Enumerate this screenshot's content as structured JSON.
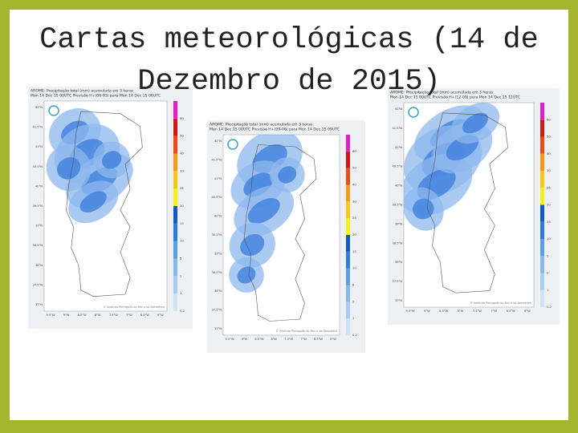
{
  "header": {
    "title_lines": [
      "Cartas meteorológicas (14 de",
      "Dezembro de 2015)"
    ]
  },
  "maps": [
    {
      "heading": [
        "AROME: Precipitação total (mm) acumulada em 3 horas",
        "Mon 14 Dec 15 00UTC Previsão H+(06-03) para Mon 14 Dec 15 06UTC"
      ],
      "lat_labels": [
        "42°N",
        "41.5°N",
        "41°N",
        "40.5°N",
        "40°N",
        "39.5°N",
        "39°N",
        "38.5°N",
        "38°N",
        "37.5°N",
        "37°N"
      ],
      "lon_labels": [
        "9.5°W",
        "9°W",
        "8.5°W",
        "8°W",
        "7.5°W",
        "7°W",
        "6.5°W",
        "6°W"
      ],
      "colorbar_labels": [
        "0.2",
        "1",
        "2",
        "5",
        "10",
        "15",
        "20",
        "25",
        "30",
        "40",
        "50",
        "60"
      ],
      "credit": "© Instituto Português do Mar e da Atmosfera"
    },
    {
      "heading": [
        "AROME: Precipitação total (mm) acumulada em 3 horas",
        "Mon 14 Dec 15 00UTC Previsão H+(09-06) para Mon 14 Dec 15 09UTC"
      ],
      "lat_labels": [
        "42°N",
        "41.5°N",
        "41°N",
        "40.5°N",
        "40°N",
        "39.5°N",
        "39°N",
        "38.5°N",
        "38°N",
        "37.5°N",
        "37°N"
      ],
      "lon_labels": [
        "9.5°W",
        "9°W",
        "8.5°W",
        "8°W",
        "7.5°W",
        "7°W",
        "6.5°W",
        "6°W"
      ],
      "colorbar_labels": [
        "0.2",
        "1",
        "2",
        "5",
        "10",
        "15",
        "20",
        "25",
        "30",
        "40",
        "50",
        "60"
      ],
      "credit": "© Instituto Português do Mar e da Atmosfera"
    },
    {
      "heading": [
        "AROME: Precipitação total (mm) acumulada em 3 horas",
        "Mon 14 Dec 15 00UTC Previsão H+(12-09) para Mon 14 Dec 15 12UTC"
      ],
      "lat_labels": [
        "42°N",
        "41.5°N",
        "41°N",
        "40.5°N",
        "40°N",
        "39.5°N",
        "39°N",
        "38.5°N",
        "38°N",
        "37.5°N",
        "37°N"
      ],
      "lon_labels": [
        "9.5°W",
        "9°W",
        "8.5°W",
        "8°W",
        "7.5°W",
        "7°W",
        "6.5°W",
        "6°W"
      ],
      "colorbar_labels": [
        "0.2",
        "1",
        "2",
        "5",
        "10",
        "15",
        "20",
        "25",
        "30",
        "40",
        "50",
        "60"
      ],
      "credit": "© Instituto Português do Mar e da Atmosfera"
    }
  ]
}
